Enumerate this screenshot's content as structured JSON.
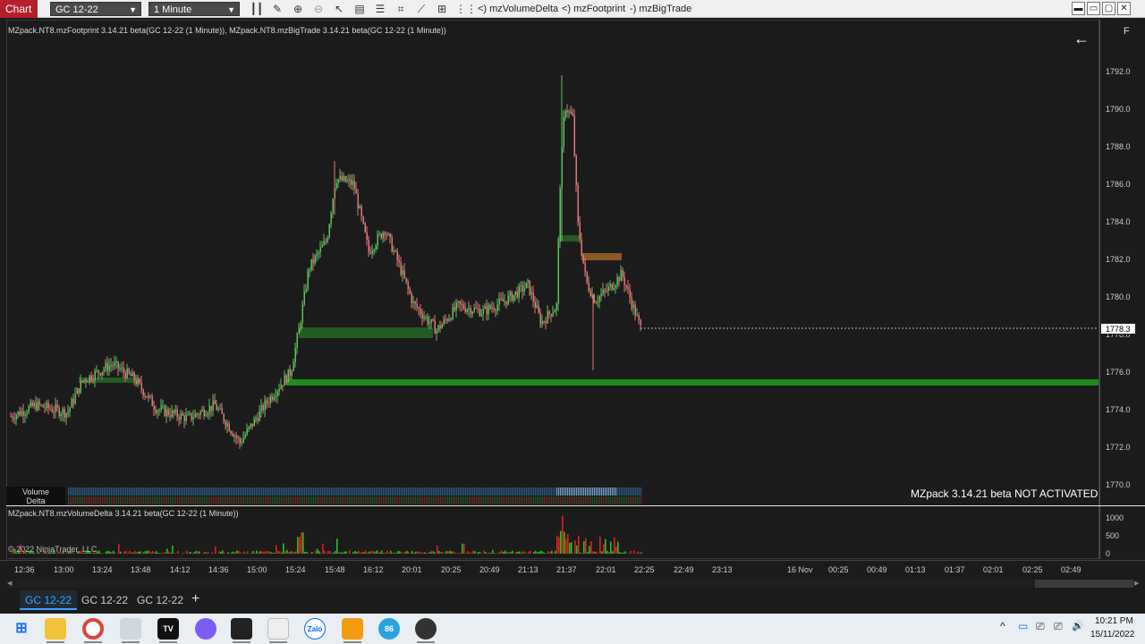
{
  "toolbar": {
    "title": "Chart",
    "instrument": "GC 12-22",
    "interval": "1 Minute",
    "indicators": [
      "<) mzVolumeDelta",
      "<) mzFootprint",
      "-) mzBigTrade"
    ],
    "icons": [
      "bars-icon",
      "pencil-icon",
      "zoom-in-icon",
      "zoom-out-icon",
      "pointer-icon",
      "data-box-icon",
      "properties-icon",
      "drawing-tools-icon",
      "indicators-icon",
      "strategies-icon",
      "templates-icon"
    ],
    "window_buttons": [
      "▬",
      "▭",
      "▢",
      "✕"
    ]
  },
  "chart": {
    "caption": "MZpack.NT8.mzFootprint 3.14.21 beta(GC 12-22 (1 Minute)), MZpack.NT8.mzBigTrade 3.14.21 beta(GC 12-22 (1 Minute))",
    "back_arrow": "←",
    "f_button": "F",
    "last_price": "1778.3",
    "price_labels": [
      "1792.0",
      "1790.0",
      "1788.0",
      "1786.0",
      "1784.0",
      "1782.0",
      "1780.0",
      "1778.0",
      "1776.0",
      "1774.0",
      "1772.0",
      "1770.0"
    ],
    "watermark": "MZpack 3.14.21 beta NOT ACTIVATED",
    "volume_label": "Volume",
    "delta_label": "Delta",
    "colors": {
      "up": "#5ec05e",
      "down": "#e07878",
      "level": "#1f8a1f",
      "level_dark": "#225c22",
      "orange": "#8a5a25",
      "background": "#1b1b1b"
    }
  },
  "volume_panel": {
    "caption": "MZpack.NT8.mzVolumeDelta 3.14.21 beta(GC 12-22 (1 Minute))",
    "copyright": "© 2022 NinjaTrader, LLC",
    "labels": [
      "1000",
      "500",
      "0"
    ]
  },
  "time_axis": [
    "12:36",
    "13:00",
    "13:24",
    "13:48",
    "14:12",
    "14:36",
    "15:00",
    "15:24",
    "15:48",
    "16:12",
    "20:01",
    "20:25",
    "20:49",
    "21:13",
    "21:37",
    "22:01",
    "22:25",
    "22:49",
    "23:13",
    "16 Nov",
    "00:25",
    "00:49",
    "01:13",
    "01:37",
    "02:01",
    "02:25",
    "02:49"
  ],
  "tabs": [
    "GC 12-22",
    "GC 12-22",
    "GC 12-22"
  ],
  "add_tab": "+",
  "taskbar": {
    "apps": [
      "windows-start-icon",
      "file-explorer-icon",
      "chrome-icon",
      "photos-icon",
      "tradingview-icon",
      "messenger-icon",
      "ninjatrader-icon",
      "app-icon",
      "zalo-icon",
      "app-orange-icon",
      "telegram-icon",
      "obs-icon"
    ],
    "app_labels": {
      "tradingview": "TV",
      "zalo": "Zalo",
      "telegram": "86"
    },
    "time": "10:21 PM",
    "date": "15/11/2022",
    "tray": [
      "^",
      "▭",
      "⎚",
      "🔊"
    ]
  }
}
